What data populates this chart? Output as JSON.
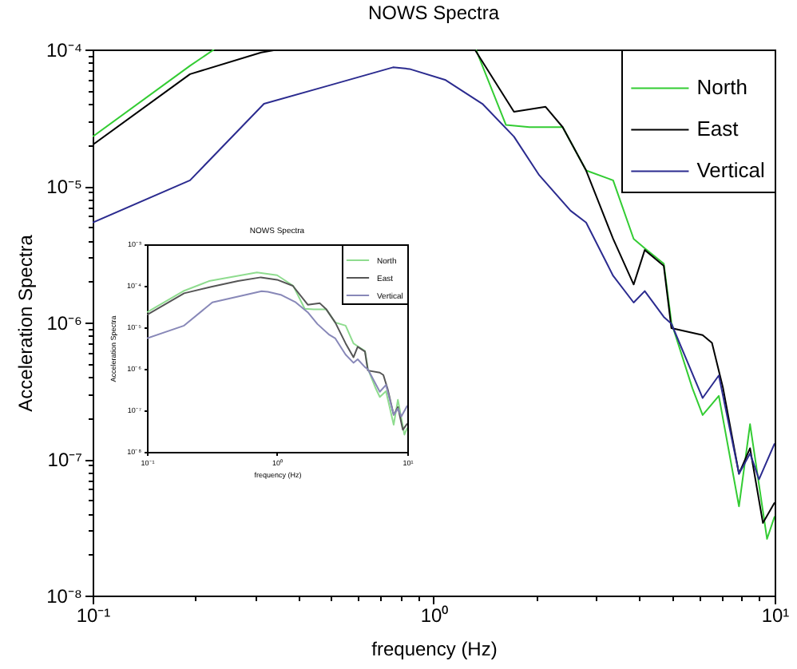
{
  "chart_data": [
    {
      "type": "line",
      "title": "NOWS Spectra",
      "xlabel": "frequency (Hz)",
      "ylabel": "Acceleration Spectra",
      "log": "xy",
      "legend": "top right",
      "xlim": [
        0.1,
        10
      ],
      "ylim": [
        1e-08,
        0.0001
      ],
      "xticks": [
        {
          "value": 0.1,
          "label": "10⁻¹"
        },
        {
          "value": 0.2,
          "label": null
        },
        {
          "value": 0.3,
          "label": null
        },
        {
          "value": 0.4,
          "label": null
        },
        {
          "value": 0.5,
          "label": null
        },
        {
          "value": 0.6,
          "label": null
        },
        {
          "value": 0.7,
          "label": null
        },
        {
          "value": 0.8,
          "label": null
        },
        {
          "value": 0.9,
          "label": null
        },
        {
          "value": 1,
          "label": "10⁰"
        },
        {
          "value": 2,
          "label": null
        },
        {
          "value": 3,
          "label": null
        },
        {
          "value": 4,
          "label": null
        },
        {
          "value": 5,
          "label": null
        },
        {
          "value": 6,
          "label": null
        },
        {
          "value": 7,
          "label": null
        },
        {
          "value": 8,
          "label": null
        },
        {
          "value": 9,
          "label": null
        },
        {
          "value": 10,
          "label": "10¹"
        }
      ],
      "yticks": [
        {
          "value": 1e-08,
          "label": "10⁻⁸"
        },
        {
          "value": 2e-08,
          "label": null
        },
        {
          "value": 3e-08,
          "label": null
        },
        {
          "value": 4e-08,
          "label": null
        },
        {
          "value": 5e-08,
          "label": null
        },
        {
          "value": 6e-08,
          "label": null
        },
        {
          "value": 7e-08,
          "label": null
        },
        {
          "value": 8e-08,
          "label": null
        },
        {
          "value": 9e-08,
          "label": null
        },
        {
          "value": 1e-07,
          "label": "10⁻⁷"
        },
        {
          "value": 2e-07,
          "label": null
        },
        {
          "value": 3e-07,
          "label": null
        },
        {
          "value": 4e-07,
          "label": null
        },
        {
          "value": 5e-07,
          "label": null
        },
        {
          "value": 6e-07,
          "label": null
        },
        {
          "value": 7e-07,
          "label": null
        },
        {
          "value": 8e-07,
          "label": null
        },
        {
          "value": 9e-07,
          "label": null
        },
        {
          "value": 1e-06,
          "label": "10⁻⁶"
        },
        {
          "value": 2e-06,
          "label": null
        },
        {
          "value": 3e-06,
          "label": null
        },
        {
          "value": 4e-06,
          "label": null
        },
        {
          "value": 5e-06,
          "label": null
        },
        {
          "value": 6e-06,
          "label": null
        },
        {
          "value": 7e-06,
          "label": null
        },
        {
          "value": 8e-06,
          "label": null
        },
        {
          "value": 9e-06,
          "label": null
        },
        {
          "value": 1e-05,
          "label": "10⁻⁵"
        },
        {
          "value": 2e-05,
          "label": null
        },
        {
          "value": 3e-05,
          "label": null
        },
        {
          "value": 4e-05,
          "label": null
        },
        {
          "value": 5e-05,
          "label": null
        },
        {
          "value": 6e-05,
          "label": null
        },
        {
          "value": 7e-05,
          "label": null
        },
        {
          "value": 8e-05,
          "label": null
        },
        {
          "value": 9e-05,
          "label": null
        },
        {
          "value": 0.0001,
          "label": "10⁻⁴"
        }
      ],
      "series": [
        {
          "name": "North",
          "color": "#33cc33",
          "x": [
            0.1,
            0.193,
            0.227,
            0.5,
            1.33,
            1.63,
            1.91,
            2.39,
            2.8,
            3.36,
            3.86,
            4.16,
            4.73,
            4.98,
            5.74,
            6.15,
            6.86,
            7.86,
            8.47,
            9.5,
            10
          ],
          "values": [
            2.3e-05,
            7.6e-05,
            0.0001,
            null,
            0.0001,
            2.8e-05,
            2.7e-05,
            2.7e-05,
            1.3e-05,
            1.1e-05,
            4.1e-06,
            3.5e-06,
            2.7e-06,
            1e-06,
            3.3e-07,
            2.1e-07,
            2.9e-07,
            4.5e-08,
            1.8e-07,
            2.6e-08,
            3.8e-08
          ]
        },
        {
          "name": "East",
          "color": "#000000",
          "x": [
            0.1,
            0.193,
            0.312,
            0.35,
            0.6,
            1.32,
            1.72,
            2.13,
            2.39,
            2.8,
            3.36,
            3.86,
            4.16,
            4.73,
            4.98,
            6.15,
            6.55,
            7.06,
            7.86,
            8.47,
            9.24,
            10
          ],
          "values": [
            2e-05,
            6.6e-05,
            9.5e-05,
            0.0001,
            null,
            0.0001,
            3.5e-05,
            3.8e-05,
            2.7e-05,
            1.3e-05,
            4.1e-06,
            1.9e-06,
            3.4e-06,
            2.6e-06,
            9.1e-07,
            8.1e-07,
            7.1e-07,
            3.3e-07,
            7.8e-08,
            1.2e-07,
            3.4e-08,
            4.8e-08
          ]
        },
        {
          "name": "Vertical",
          "color": "#2b2b8f",
          "x": [
            0.1,
            0.193,
            0.318,
            0.5,
            0.76,
            0.85,
            1.08,
            1.39,
            1.72,
            2.04,
            2.52,
            2.8,
            3.36,
            3.86,
            4.16,
            4.73,
            4.98,
            6.15,
            6.86,
            7.86,
            8.47,
            9.0,
            10
          ],
          "values": [
            5.4e-06,
            1.1e-05,
            4e-05,
            5.5e-05,
            7.4e-05,
            7.2e-05,
            6e-05,
            4e-05,
            2.3e-05,
            1.2e-05,
            6.6e-06,
            5.4e-06,
            2.2e-06,
            1.4e-06,
            1.7e-06,
            1.1e-06,
            9.8e-07,
            2.8e-07,
            4.1e-07,
            7.8e-08,
            1.1e-07,
            7.1e-08,
            1.3e-07
          ]
        }
      ]
    },
    {
      "type": "line",
      "title": "NOWS Spectra",
      "xlabel": "frequency (Hz)",
      "ylabel": "Acceleration Spectra",
      "log": "xy",
      "legend": "top right",
      "xlim": [
        0.1,
        10
      ],
      "ylim": [
        1e-08,
        0.001
      ],
      "xticks": [
        {
          "value": 0.1,
          "label": "10⁻¹"
        },
        {
          "value": 1,
          "label": "10⁰"
        },
        {
          "value": 10,
          "label": "10¹"
        }
      ],
      "yticks": [
        {
          "value": 1e-08,
          "label": "10⁻⁸"
        },
        {
          "value": 1e-07,
          "label": "10⁻⁷"
        },
        {
          "value": 1e-06,
          "label": "10⁻⁶"
        },
        {
          "value": 1e-05,
          "label": "10⁻⁵"
        },
        {
          "value": 0.0001,
          "label": "10⁻⁴"
        },
        {
          "value": 0.001,
          "label": "10⁻³"
        }
      ],
      "series": [
        {
          "name": "North",
          "color": "#8fdc8f",
          "x": [
            0.1,
            0.193,
            0.3,
            0.7,
            1.0,
            1.33,
            1.63,
            1.91,
            2.39,
            2.8,
            3.36,
            3.86,
            4.16,
            4.73,
            4.98,
            5.74,
            6.15,
            6.86,
            7.86,
            8.47,
            9.5,
            10
          ],
          "values": [
            2.3e-05,
            7.6e-05,
            0.00013,
            0.00021,
            0.00018,
            0.0001,
            2.8e-05,
            2.7e-05,
            2.7e-05,
            1.3e-05,
            1.1e-05,
            4.1e-06,
            3.5e-06,
            2.7e-06,
            1e-06,
            3.3e-07,
            2.1e-07,
            2.9e-07,
            4.5e-08,
            1.8e-07,
            2.6e-08,
            3.8e-08
          ]
        },
        {
          "name": "East",
          "color": "#555555",
          "x": [
            0.1,
            0.193,
            0.312,
            0.5,
            0.75,
            1.0,
            1.32,
            1.72,
            2.13,
            2.39,
            2.8,
            3.36,
            3.86,
            4.16,
            4.73,
            4.98,
            6.15,
            6.55,
            7.06,
            7.86,
            8.47,
            9.24,
            10
          ],
          "values": [
            2e-05,
            6.6e-05,
            9.5e-05,
            0.00013,
            0.00016,
            0.00014,
            0.0001,
            3.5e-05,
            3.8e-05,
            2.7e-05,
            1.3e-05,
            4.1e-06,
            1.9e-06,
            3.4e-06,
            2.6e-06,
            9.1e-07,
            8.1e-07,
            7.1e-07,
            3.3e-07,
            7.8e-08,
            1.2e-07,
            3.4e-08,
            4.8e-08
          ]
        },
        {
          "name": "Vertical",
          "color": "#8888b8",
          "x": [
            0.1,
            0.193,
            0.318,
            0.5,
            0.76,
            0.85,
            1.08,
            1.39,
            1.72,
            2.04,
            2.52,
            2.8,
            3.36,
            3.86,
            4.16,
            4.73,
            4.98,
            6.15,
            6.86,
            7.86,
            8.47,
            9.0,
            10
          ],
          "values": [
            5.4e-06,
            1.1e-05,
            4e-05,
            5.5e-05,
            7.4e-05,
            7.2e-05,
            6e-05,
            4e-05,
            2.3e-05,
            1.2e-05,
            6.6e-06,
            5.4e-06,
            2.2e-06,
            1.4e-06,
            1.7e-06,
            1.1e-06,
            9.8e-07,
            2.8e-07,
            4.1e-07,
            7.8e-08,
            1.1e-07,
            7.1e-08,
            1.3e-07
          ]
        }
      ]
    }
  ]
}
